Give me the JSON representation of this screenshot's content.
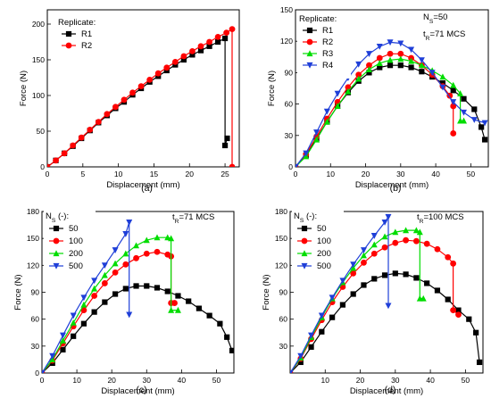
{
  "chart_data": [
    {
      "id": "a",
      "type": "line",
      "panel_label": "(a)",
      "xlabel": "Displacement (mm)",
      "ylabel": "Force (N)",
      "xlim": [
        0,
        27
      ],
      "ylim": [
        0,
        220
      ],
      "xticks": [
        0,
        5,
        10,
        15,
        20,
        25
      ],
      "yticks": [
        0,
        50,
        100,
        150,
        200
      ],
      "legend_title": "Replicate:",
      "legend_position": "top-left",
      "annotations": [],
      "series": [
        {
          "name": "R1",
          "color": "#000000",
          "marker": "square",
          "x": [
            0,
            1.2,
            2.4,
            3.6,
            4.8,
            6,
            7.2,
            8.4,
            9.6,
            10.8,
            12,
            13.2,
            14.4,
            15.6,
            16.8,
            18,
            19.2,
            20.4,
            21.6,
            22.8,
            24,
            25,
            25,
            25.3
          ],
          "y": [
            0,
            9,
            19,
            29,
            40,
            51,
            62,
            72,
            82,
            91,
            101,
            110,
            119,
            127,
            135,
            143,
            150,
            157,
            163,
            169,
            175,
            180,
            30,
            40
          ]
        },
        {
          "name": "R2",
          "color": "#ff0000",
          "marker": "circle",
          "x": [
            0,
            1.2,
            2.4,
            3.6,
            4.8,
            6,
            7.2,
            8.4,
            9.6,
            10.8,
            12,
            13.2,
            14.4,
            15.6,
            16.8,
            18,
            19.2,
            20.4,
            21.6,
            22.8,
            24,
            25.2,
            26,
            26
          ],
          "y": [
            0,
            9,
            19,
            30,
            41,
            52,
            63,
            74,
            84,
            94,
            104,
            113,
            122,
            131,
            139,
            147,
            155,
            162,
            169,
            175,
            182,
            188,
            193,
            0
          ]
        }
      ]
    },
    {
      "id": "b",
      "type": "line",
      "panel_label": "(b)",
      "xlabel": "Displacement (mm)",
      "ylabel": "Force (N)",
      "xlim": [
        0,
        55
      ],
      "ylim": [
        0,
        150
      ],
      "xticks": [
        0,
        10,
        20,
        30,
        40,
        50
      ],
      "yticks": [
        0,
        30,
        60,
        90,
        120,
        150
      ],
      "legend_title": "Replicate:",
      "legend_position": "top-left",
      "annotations": [
        {
          "base": "N",
          "sub": "S",
          "rest": "=50"
        },
        {
          "base": "t",
          "sub": "R",
          "rest": "=71 MCS"
        }
      ],
      "series": [
        {
          "name": "R1",
          "color": "#000000",
          "marker": "square",
          "x": [
            0,
            3,
            6,
            9,
            12,
            15,
            18,
            21,
            24,
            27,
            30,
            33,
            36,
            39,
            42,
            45,
            48,
            51,
            53,
            54
          ],
          "y": [
            0,
            11,
            27,
            43,
            58,
            71,
            82,
            90,
            95,
            97,
            97,
            95,
            91,
            86,
            80,
            73,
            65,
            55,
            38,
            26
          ]
        },
        {
          "name": "R2",
          "color": "#ff0000",
          "marker": "circle",
          "x": [
            0,
            3,
            6,
            9,
            12,
            15,
            18,
            21,
            24,
            27,
            30,
            33,
            36,
            39,
            42,
            44,
            45,
            45
          ],
          "y": [
            0,
            12,
            29,
            46,
            62,
            76,
            88,
            97,
            104,
            108,
            108,
            104,
            97,
            88,
            77,
            68,
            58,
            32
          ]
        },
        {
          "name": "R3",
          "color": "#00dd00",
          "marker": "triangle-up",
          "x": [
            0,
            3,
            6,
            9,
            12,
            15,
            18,
            21,
            24,
            27,
            30,
            33,
            36,
            39,
            42,
            45,
            47,
            47,
            48
          ],
          "y": [
            0,
            10,
            26,
            43,
            58,
            72,
            84,
            93,
            99,
            102,
            103,
            101,
            97,
            92,
            86,
            78,
            70,
            44,
            44
          ]
        },
        {
          "name": "R4",
          "color": "#1f3fd8",
          "marker": "triangle-down",
          "x": [
            0,
            3,
            6,
            9,
            12,
            15,
            18,
            21,
            24,
            27,
            30,
            33,
            36,
            39,
            42,
            45,
            48,
            51,
            54
          ],
          "y": [
            0,
            13,
            33,
            53,
            70,
            85,
            98,
            108,
            115,
            119,
            118,
            112,
            102,
            90,
            76,
            62,
            52,
            45,
            42
          ]
        }
      ]
    },
    {
      "id": "c",
      "type": "line",
      "panel_label": "(c)",
      "xlabel": "Displacement (mm)",
      "ylabel": "Force (N)",
      "xlim": [
        0,
        55
      ],
      "ylim": [
        0,
        180
      ],
      "xticks": [
        0,
        10,
        20,
        30,
        40,
        50
      ],
      "yticks": [
        0,
        30,
        60,
        90,
        120,
        150,
        180
      ],
      "legend_title": {
        "base": "N",
        "sub": "S",
        "rest": " (-):"
      },
      "legend_position": "top-left",
      "annotations": [
        {
          "base": "t",
          "sub": "R",
          "rest": "=71 MCS"
        }
      ],
      "series": [
        {
          "name": "50",
          "color": "#000000",
          "marker": "square",
          "x": [
            0,
            3,
            6,
            9,
            12,
            15,
            18,
            21,
            24,
            27,
            30,
            33,
            36,
            39,
            42,
            45,
            48,
            51,
            53,
            54.5
          ],
          "y": [
            0,
            11,
            26,
            41,
            55,
            68,
            79,
            88,
            94,
            97,
            97,
            95,
            91,
            86,
            80,
            72,
            64,
            55,
            40,
            25
          ]
        },
        {
          "name": "100",
          "color": "#ff0000",
          "marker": "circle",
          "x": [
            0,
            3,
            6,
            9,
            12,
            15,
            18,
            21,
            24,
            27,
            30,
            33,
            36,
            37,
            37,
            38
          ],
          "y": [
            0,
            14,
            33,
            52,
            70,
            86,
            100,
            112,
            121,
            128,
            133,
            135,
            132,
            130,
            78,
            78
          ]
        },
        {
          "name": "200",
          "color": "#00dd00",
          "marker": "triangle-up",
          "x": [
            0,
            3,
            6,
            9,
            12,
            15,
            18,
            21,
            24,
            27,
            30,
            33,
            36,
            37,
            37,
            39
          ],
          "y": [
            0,
            15,
            36,
            56,
            76,
            94,
            109,
            122,
            133,
            142,
            148,
            151,
            151,
            150,
            70,
            70
          ]
        },
        {
          "name": "500",
          "color": "#1f3fd8",
          "marker": "triangle-down",
          "x": [
            0,
            3,
            6,
            9,
            12,
            15,
            18,
            21,
            24,
            25,
            25
          ],
          "y": [
            0,
            19,
            42,
            64,
            84,
            103,
            120,
            137,
            155,
            168,
            65
          ]
        }
      ]
    },
    {
      "id": "d",
      "type": "line",
      "panel_label": "(d)",
      "xlabel": "Displacement (mm)",
      "ylabel": "Force (N)",
      "xlim": [
        0,
        55
      ],
      "ylim": [
        0,
        180
      ],
      "xticks": [
        10,
        20,
        30,
        40,
        50
      ],
      "yticks": [
        30,
        60,
        90,
        120,
        150,
        180
      ],
      "legend_title": {
        "base": "N",
        "sub": "S",
        "rest": " (-):"
      },
      "legend_position": "top-left",
      "annotations": [
        {
          "base": "t",
          "sub": "R",
          "rest": "=100 MCS"
        }
      ],
      "series": [
        {
          "name": "50",
          "color": "#000000",
          "marker": "square",
          "x": [
            0,
            3,
            6,
            9,
            12,
            15,
            18,
            21,
            24,
            27,
            30,
            33,
            36,
            39,
            42,
            45,
            48,
            51,
            53,
            54
          ],
          "y": [
            0,
            12,
            29,
            46,
            62,
            76,
            88,
            98,
            105,
            109,
            111,
            110,
            106,
            100,
            92,
            82,
            70,
            60,
            45,
            12
          ]
        },
        {
          "name": "100",
          "color": "#ff0000",
          "marker": "circle",
          "x": [
            0,
            3,
            6,
            9,
            12,
            15,
            18,
            21,
            24,
            27,
            30,
            33,
            36,
            39,
            42,
            45,
            46.5,
            46.5,
            48
          ],
          "y": [
            0,
            16,
            38,
            59,
            79,
            96,
            111,
            123,
            133,
            140,
            145,
            148,
            147,
            144,
            138,
            129,
            122,
            70,
            65
          ]
        },
        {
          "name": "200",
          "color": "#00dd00",
          "marker": "triangle-up",
          "x": [
            0,
            3,
            6,
            9,
            12,
            15,
            18,
            21,
            24,
            27,
            30,
            33,
            36,
            37,
            37,
            38
          ],
          "y": [
            0,
            17,
            40,
            62,
            83,
            101,
            117,
            131,
            143,
            152,
            157,
            159,
            159,
            157,
            83,
            83
          ]
        },
        {
          "name": "500",
          "color": "#1f3fd8",
          "marker": "triangle-down",
          "x": [
            0,
            3,
            6,
            9,
            12,
            15,
            18,
            21,
            24,
            27,
            28,
            28
          ],
          "y": [
            0,
            19,
            42,
            64,
            84,
            103,
            121,
            137,
            153,
            168,
            174,
            75
          ]
        }
      ]
    }
  ]
}
